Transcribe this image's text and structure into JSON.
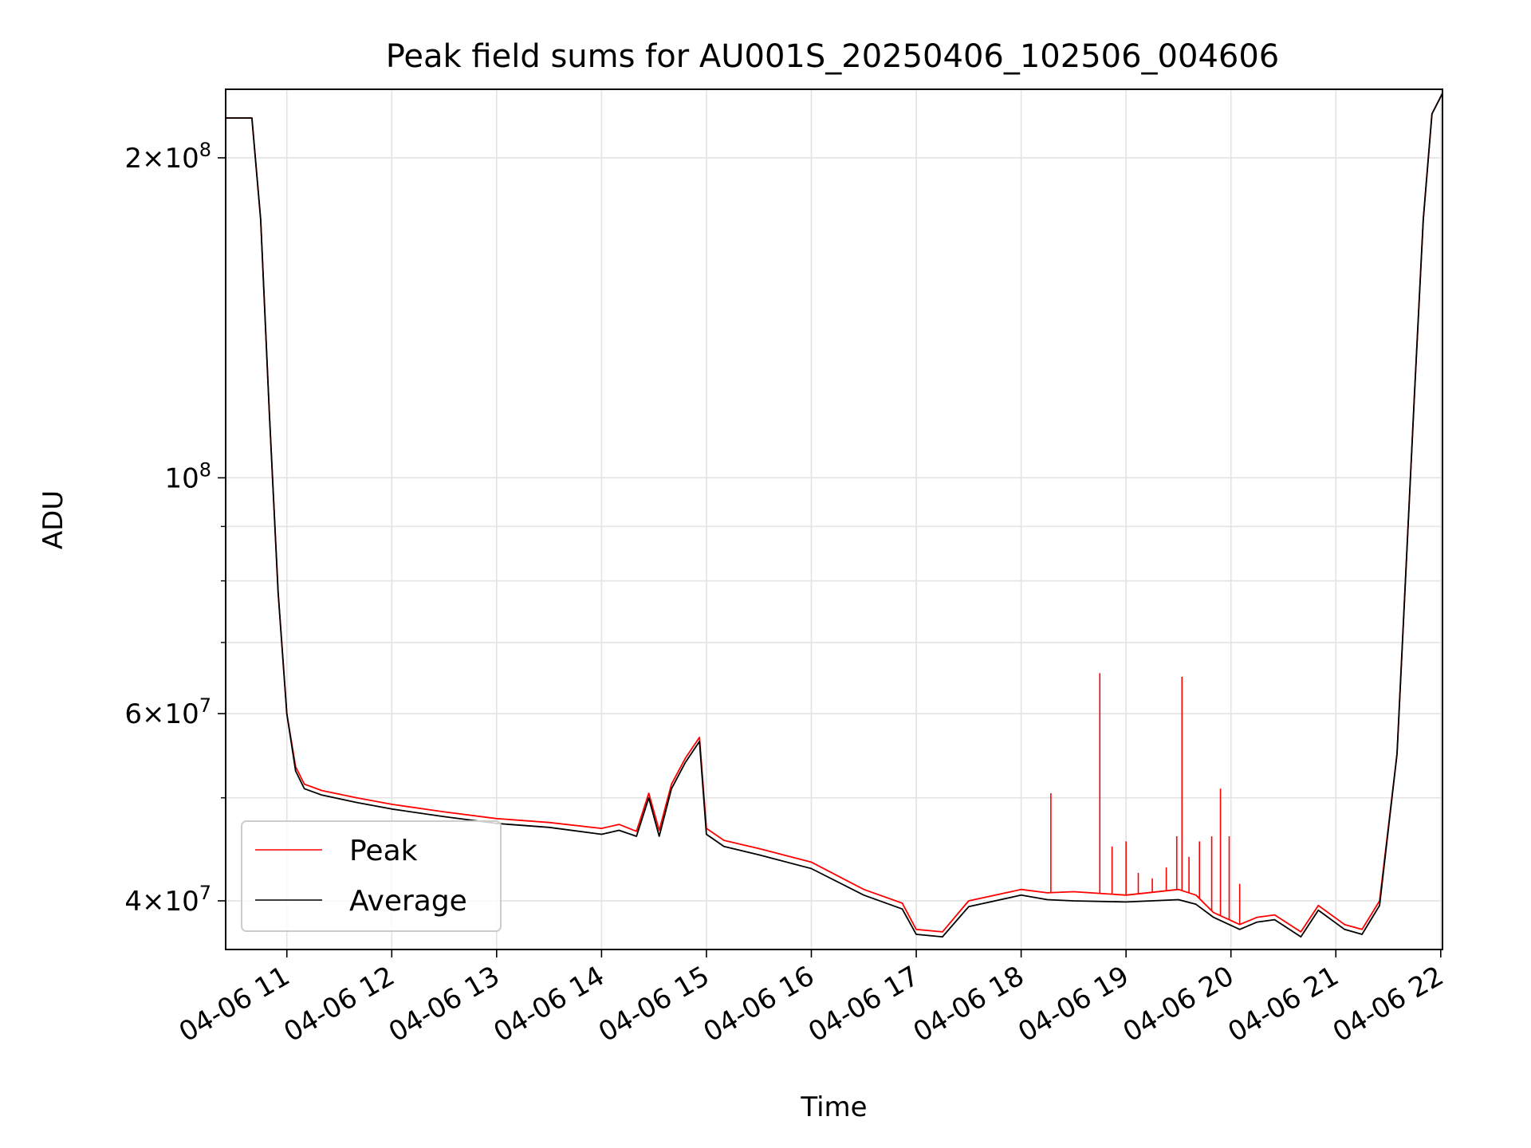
{
  "chart_data": {
    "type": "line",
    "title": "Peak field sums for AU001S_20250406_102506_004606",
    "xlabel": "Time",
    "ylabel": "ADU",
    "y_scale": "log",
    "ylim": [
      36000000,
      232000000
    ],
    "xlim": [
      "2025-04-06 10:25",
      "2025-04-06 22:01"
    ],
    "grid": true,
    "legend_position": "lower-left",
    "x_ticks": [
      "04-06 11",
      "04-06 12",
      "04-06 13",
      "04-06 14",
      "04-06 15",
      "04-06 16",
      "04-06 17",
      "04-06 18",
      "04-06 19",
      "04-06 20",
      "04-06 21",
      "04-06 22"
    ],
    "y_ticks": [
      {
        "value": 40000000,
        "mantissa": "4",
        "exponent": "7"
      },
      {
        "value": 60000000,
        "mantissa": "6",
        "exponent": "7"
      },
      {
        "value": 100000000,
        "mantissa": "",
        "exponent": "8"
      },
      {
        "value": 200000000,
        "mantissa": "2",
        "exponent": "8"
      }
    ],
    "series": [
      {
        "name": "Peak",
        "color": "#ff0000",
        "x": [
          "2025-04-06 10:25",
          "2025-04-06 10:35",
          "2025-04-06 10:40",
          "2025-04-06 10:45",
          "2025-04-06 10:50",
          "2025-04-06 10:55",
          "2025-04-06 11:00",
          "2025-04-06 11:05",
          "2025-04-06 11:10",
          "2025-04-06 11:20",
          "2025-04-06 11:40",
          "2025-04-06 12:00",
          "2025-04-06 12:30",
          "2025-04-06 13:00",
          "2025-04-06 13:30",
          "2025-04-06 14:00",
          "2025-04-06 14:10",
          "2025-04-06 14:20",
          "2025-04-06 14:27",
          "2025-04-06 14:33",
          "2025-04-06 14:40",
          "2025-04-06 14:48",
          "2025-04-06 14:56",
          "2025-04-06 15:00",
          "2025-04-06 15:10",
          "2025-04-06 15:30",
          "2025-04-06 16:00",
          "2025-04-06 16:30",
          "2025-04-06 16:52",
          "2025-04-06 17:00",
          "2025-04-06 17:15",
          "2025-04-06 17:30",
          "2025-04-06 18:00",
          "2025-04-06 18:15",
          "2025-04-06 18:30",
          "2025-04-06 19:00",
          "2025-04-06 19:30",
          "2025-04-06 19:40",
          "2025-04-06 19:50",
          "2025-04-06 20:05",
          "2025-04-06 20:15",
          "2025-04-06 20:25",
          "2025-04-06 20:40",
          "2025-04-06 20:50",
          "2025-04-06 21:05",
          "2025-04-06 21:15",
          "2025-04-06 21:25",
          "2025-04-06 21:35",
          "2025-04-06 21:45",
          "2025-04-06 21:50",
          "2025-04-06 21:55",
          "2025-04-06 22:01"
        ],
        "y": [
          218000000,
          218000000,
          218000000,
          175000000,
          115000000,
          78000000,
          60000000,
          53500000,
          51500000,
          50800000,
          50000000,
          49300000,
          48500000,
          47800000,
          47400000,
          46800000,
          47200000,
          46500000,
          50500000,
          46600000,
          51500000,
          54500000,
          57000000,
          46800000,
          45600000,
          44800000,
          43500000,
          41000000,
          39800000,
          37600000,
          37400000,
          40000000,
          41000000,
          40700000,
          40800000,
          40500000,
          41000000,
          40500000,
          39000000,
          38000000,
          38600000,
          38800000,
          37400000,
          39600000,
          38000000,
          37600000,
          40000000,
          55000000,
          120000000,
          175000000,
          220000000,
          230000000
        ]
      },
      {
        "name": "Average",
        "color": "#000000",
        "x": [
          "2025-04-06 10:25",
          "2025-04-06 10:35",
          "2025-04-06 10:40",
          "2025-04-06 10:45",
          "2025-04-06 10:50",
          "2025-04-06 10:55",
          "2025-04-06 11:00",
          "2025-04-06 11:05",
          "2025-04-06 11:10",
          "2025-04-06 11:20",
          "2025-04-06 11:40",
          "2025-04-06 12:00",
          "2025-04-06 12:30",
          "2025-04-06 13:00",
          "2025-04-06 13:30",
          "2025-04-06 14:00",
          "2025-04-06 14:10",
          "2025-04-06 14:20",
          "2025-04-06 14:27",
          "2025-04-06 14:33",
          "2025-04-06 14:40",
          "2025-04-06 14:48",
          "2025-04-06 14:56",
          "2025-04-06 15:00",
          "2025-04-06 15:10",
          "2025-04-06 15:30",
          "2025-04-06 16:00",
          "2025-04-06 16:30",
          "2025-04-06 16:52",
          "2025-04-06 17:00",
          "2025-04-06 17:15",
          "2025-04-06 17:30",
          "2025-04-06 18:00",
          "2025-04-06 18:15",
          "2025-04-06 18:30",
          "2025-04-06 19:00",
          "2025-04-06 19:30",
          "2025-04-06 19:40",
          "2025-04-06 19:50",
          "2025-04-06 20:05",
          "2025-04-06 20:15",
          "2025-04-06 20:25",
          "2025-04-06 20:40",
          "2025-04-06 20:50",
          "2025-04-06 21:05",
          "2025-04-06 21:15",
          "2025-04-06 21:25",
          "2025-04-06 21:35",
          "2025-04-06 21:45",
          "2025-04-06 21:50",
          "2025-04-06 21:55",
          "2025-04-06 22:01"
        ],
        "y": [
          218000000,
          218000000,
          218000000,
          175000000,
          115000000,
          78000000,
          60000000,
          53000000,
          51000000,
          50300000,
          49500000,
          48800000,
          48000000,
          47300000,
          46900000,
          46200000,
          46600000,
          46000000,
          50000000,
          46000000,
          51000000,
          54000000,
          56500000,
          46200000,
          45000000,
          44200000,
          42900000,
          40500000,
          39300000,
          37200000,
          37000000,
          39500000,
          40500000,
          40100000,
          40000000,
          39900000,
          40100000,
          39700000,
          38600000,
          37600000,
          38200000,
          38400000,
          37000000,
          39200000,
          37600000,
          37200000,
          39600000,
          55000000,
          120000000,
          175000000,
          220000000,
          230000000
        ]
      }
    ],
    "peak_spikes": [
      {
        "x": "2025-04-06 18:17",
        "y": 50500000
      },
      {
        "x": "2025-04-06 18:45",
        "y": 65500000
      },
      {
        "x": "2025-04-06 18:52",
        "y": 45000000
      },
      {
        "x": "2025-04-06 19:00",
        "y": 45500000
      },
      {
        "x": "2025-04-06 19:07",
        "y": 42500000
      },
      {
        "x": "2025-04-06 19:15",
        "y": 42000000
      },
      {
        "x": "2025-04-06 19:23",
        "y": 43000000
      },
      {
        "x": "2025-04-06 19:29",
        "y": 46000000
      },
      {
        "x": "2025-04-06 19:32",
        "y": 65000000
      },
      {
        "x": "2025-04-06 19:36",
        "y": 44000000
      },
      {
        "x": "2025-04-06 19:42",
        "y": 45500000
      },
      {
        "x": "2025-04-06 19:49",
        "y": 46000000
      },
      {
        "x": "2025-04-06 19:54",
        "y": 51000000
      },
      {
        "x": "2025-04-06 19:59",
        "y": 46000000
      },
      {
        "x": "2025-04-06 20:05",
        "y": 41500000
      }
    ]
  }
}
